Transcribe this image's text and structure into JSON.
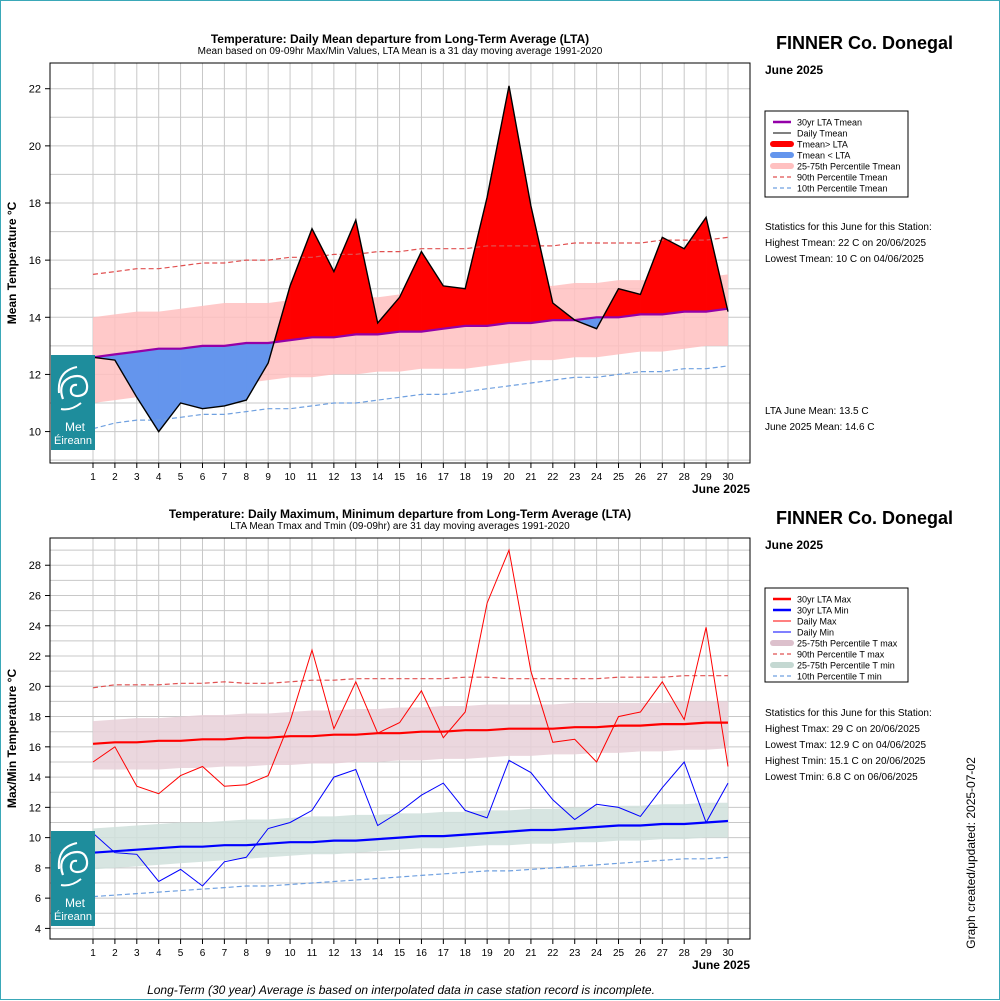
{
  "footer_note": "Long-Term (30 year) Average is based on interpolated data in case station record is incomplete.",
  "side_note": "Graph created/updated:  2025-07-02",
  "logo": {
    "text_line1": "Met",
    "text_line2": "Éireann",
    "color": "#1e8d9c"
  },
  "chart_data": [
    {
      "type": "area",
      "title": "Temperature: Daily Mean departure from Long-Term Average (LTA)",
      "subtitle": "Mean based on 09-09hr Max/Min Values, LTA Mean is a 31 day moving average 1991-2020",
      "station": "FINNER Co. Donegal",
      "month_label": "June 2025",
      "xlabel": "June 2025",
      "ylabel": "Mean Temperature °C",
      "ylim": [
        8.9,
        22.9
      ],
      "yticks": [
        10,
        12,
        14,
        16,
        18,
        20,
        22
      ],
      "x": [
        1,
        2,
        3,
        4,
        5,
        6,
        7,
        8,
        9,
        10,
        11,
        12,
        13,
        14,
        15,
        16,
        17,
        18,
        19,
        20,
        21,
        22,
        23,
        24,
        25,
        26,
        27,
        28,
        29,
        30
      ],
      "grid": true,
      "legend_position": "right",
      "colors": {
        "above": "#ff0000",
        "below": "#6495ed",
        "lta": "#9400a8",
        "band": "#ffc0c0",
        "p90": "#e05050",
        "p10": "#6fa0e0"
      },
      "series": [
        {
          "name": "30yr LTA Tmean",
          "values": [
            12.6,
            12.7,
            12.8,
            12.9,
            12.9,
            13.0,
            13.0,
            13.1,
            13.1,
            13.2,
            13.3,
            13.3,
            13.4,
            13.4,
            13.5,
            13.5,
            13.6,
            13.7,
            13.7,
            13.8,
            13.8,
            13.9,
            13.9,
            14.0,
            14.0,
            14.1,
            14.1,
            14.2,
            14.2,
            14.3
          ]
        },
        {
          "name": "Daily Tmean",
          "values": [
            12.6,
            12.5,
            11.2,
            10.0,
            11.0,
            10.8,
            10.9,
            11.1,
            12.4,
            15.1,
            17.1,
            15.6,
            17.4,
            13.8,
            14.7,
            16.3,
            15.1,
            15.0,
            18.2,
            22.1,
            17.9,
            14.5,
            13.9,
            13.6,
            15.0,
            14.8,
            16.8,
            16.4,
            17.5,
            14.2
          ]
        },
        {
          "name": "25-75th Percentile Tmean",
          "lower": [
            11.0,
            11.1,
            11.2,
            11.3,
            11.4,
            11.5,
            11.6,
            11.7,
            11.8,
            11.9,
            11.9,
            12.0,
            12.0,
            12.1,
            12.1,
            12.2,
            12.2,
            12.2,
            12.3,
            12.4,
            12.5,
            12.5,
            12.6,
            12.6,
            12.7,
            12.8,
            12.8,
            12.9,
            13.0,
            13.0
          ],
          "upper": [
            14.0,
            14.1,
            14.2,
            14.2,
            14.3,
            14.4,
            14.5,
            14.5,
            14.5,
            14.6,
            14.6,
            14.7,
            14.7,
            14.7,
            14.8,
            14.9,
            14.9,
            15.0,
            15.0,
            15.1,
            15.1,
            15.1,
            15.2,
            15.2,
            15.3,
            15.3,
            15.3,
            15.4,
            15.4,
            15.5
          ]
        },
        {
          "name": "90th Percentile Tmean",
          "values": [
            15.5,
            15.6,
            15.7,
            15.7,
            15.8,
            15.9,
            15.9,
            16.0,
            16.0,
            16.1,
            16.1,
            16.2,
            16.2,
            16.3,
            16.3,
            16.4,
            16.4,
            16.4,
            16.5,
            16.5,
            16.5,
            16.5,
            16.6,
            16.6,
            16.6,
            16.6,
            16.7,
            16.7,
            16.7,
            16.8
          ]
        },
        {
          "name": "10th Percentile Tmean",
          "values": [
            10.1,
            10.3,
            10.4,
            10.4,
            10.5,
            10.6,
            10.6,
            10.7,
            10.8,
            10.8,
            10.9,
            11.0,
            11.0,
            11.1,
            11.2,
            11.3,
            11.3,
            11.4,
            11.5,
            11.6,
            11.7,
            11.8,
            11.9,
            11.9,
            12.0,
            12.1,
            12.1,
            12.2,
            12.2,
            12.3
          ]
        }
      ],
      "legend": [
        {
          "label": "30yr LTA Tmean",
          "style": "thick",
          "color": "#9400a8"
        },
        {
          "label": "Daily Tmean",
          "style": "thin",
          "color": "#000000"
        },
        {
          "label": "Tmean> LTA",
          "style": "band",
          "color": "#ff0000"
        },
        {
          "label": "Tmean < LTA",
          "style": "band",
          "color": "#6495ed"
        },
        {
          "label": "25-75th Percentile Tmean",
          "style": "band",
          "color": "#ffc0c0"
        },
        {
          "label": "90th Percentile Tmean",
          "style": "dash",
          "color": "#e05050"
        },
        {
          "label": "10th Percentile Tmean",
          "style": "dash",
          "color": "#6fa0e0"
        }
      ],
      "stats_header": "Statistics for this June for this Station:",
      "stats": [
        "Highest Tmean: 22 C on 20/06/2025",
        "Lowest Tmean: 10 C on 04/06/2025"
      ],
      "summary": [
        "LTA June Mean: 13.5 C",
        "June 2025 Mean: 14.6 C"
      ]
    },
    {
      "type": "line",
      "title": "Temperature: Daily Maximum, Minimum departure from Long-Term Average (LTA)",
      "subtitle": "LTA Mean Tmax and Tmin (09-09hr) are 31 day moving averages 1991-2020",
      "station": "FINNER Co. Donegal",
      "month_label": "June 2025",
      "xlabel": "June 2025",
      "ylabel": "Max/Min Temperature °C",
      "ylim": [
        3.3,
        29.8
      ],
      "yticks": [
        4,
        6,
        8,
        10,
        12,
        14,
        16,
        18,
        20,
        22,
        24,
        26,
        28
      ],
      "x": [
        1,
        2,
        3,
        4,
        5,
        6,
        7,
        8,
        9,
        10,
        11,
        12,
        13,
        14,
        15,
        16,
        17,
        18,
        19,
        20,
        21,
        22,
        23,
        24,
        25,
        26,
        27,
        28,
        29,
        30
      ],
      "grid": true,
      "legend_position": "right",
      "colors": {
        "max": "#ff0000",
        "min": "#0000ff",
        "band_max": "#e8d0d8",
        "band_min": "#d0e0dc",
        "p90": "#e05050",
        "p10": "#6fa0e0"
      },
      "series": [
        {
          "name": "30yr LTA Max",
          "values": [
            16.2,
            16.3,
            16.3,
            16.4,
            16.4,
            16.5,
            16.5,
            16.6,
            16.6,
            16.7,
            16.7,
            16.8,
            16.8,
            16.9,
            16.9,
            17.0,
            17.0,
            17.1,
            17.1,
            17.2,
            17.2,
            17.2,
            17.3,
            17.3,
            17.4,
            17.4,
            17.5,
            17.5,
            17.6,
            17.6
          ]
        },
        {
          "name": "30yr LTA Min",
          "values": [
            9.0,
            9.1,
            9.2,
            9.3,
            9.4,
            9.4,
            9.5,
            9.5,
            9.6,
            9.7,
            9.7,
            9.8,
            9.8,
            9.9,
            10.0,
            10.1,
            10.1,
            10.2,
            10.3,
            10.4,
            10.5,
            10.5,
            10.6,
            10.7,
            10.8,
            10.8,
            10.9,
            10.9,
            11.0,
            11.1
          ]
        },
        {
          "name": "Daily Max",
          "values": [
            15.0,
            16.0,
            13.4,
            12.9,
            14.1,
            14.7,
            13.4,
            13.5,
            14.1,
            17.7,
            22.4,
            17.2,
            20.3,
            16.9,
            17.6,
            19.7,
            16.6,
            18.3,
            25.5,
            29.0,
            21.0,
            16.3,
            16.5,
            15.0,
            18.0,
            18.3,
            20.3,
            17.8,
            23.9,
            14.7
          ]
        },
        {
          "name": "Daily Min",
          "values": [
            10.3,
            9.0,
            8.9,
            7.1,
            7.9,
            6.8,
            8.4,
            8.7,
            10.6,
            11.0,
            11.8,
            14.0,
            14.5,
            10.8,
            11.7,
            12.8,
            13.6,
            11.8,
            11.3,
            15.1,
            14.3,
            12.5,
            11.2,
            12.2,
            12.0,
            11.4,
            13.3,
            15.0,
            11.0,
            13.6
          ]
        },
        {
          "name": "25-75th Percentile T max",
          "lower": [
            14.5,
            14.5,
            14.5,
            14.5,
            14.6,
            14.6,
            14.7,
            14.7,
            14.8,
            14.8,
            14.9,
            14.9,
            15.0,
            15.0,
            15.1,
            15.1,
            15.2,
            15.2,
            15.3,
            15.4,
            15.4,
            15.5,
            15.5,
            15.6,
            15.6,
            15.7,
            15.7,
            15.8,
            15.8,
            15.9
          ],
          "upper": [
            17.7,
            17.8,
            17.9,
            17.9,
            18.0,
            18.1,
            18.1,
            18.2,
            18.2,
            18.3,
            18.4,
            18.4,
            18.5,
            18.5,
            18.6,
            18.6,
            18.7,
            18.7,
            18.8,
            18.8,
            18.8,
            18.8,
            18.9,
            18.9,
            18.9,
            18.9,
            18.9,
            19.0,
            19.0,
            19.0
          ]
        },
        {
          "name": "25-75th Percentile T min",
          "lower": [
            7.9,
            8.0,
            8.1,
            8.2,
            8.3,
            8.4,
            8.5,
            8.6,
            8.7,
            8.8,
            8.9,
            8.9,
            9.0,
            9.1,
            9.2,
            9.3,
            9.3,
            9.4,
            9.5,
            9.5,
            9.6,
            9.6,
            9.7,
            9.7,
            9.8,
            9.8,
            9.9,
            9.9,
            10.0,
            10.0
          ],
          "upper": [
            10.6,
            10.7,
            10.8,
            10.9,
            11.0,
            11.0,
            11.1,
            11.2,
            11.2,
            11.3,
            11.4,
            11.4,
            11.5,
            11.5,
            11.6,
            11.6,
            11.7,
            11.7,
            11.8,
            11.8,
            11.9,
            11.9,
            12.0,
            12.0,
            12.1,
            12.1,
            12.2,
            12.2,
            12.3,
            12.3
          ]
        },
        {
          "name": "90th Percentile T max",
          "values": [
            19.9,
            20.1,
            20.1,
            20.1,
            20.2,
            20.2,
            20.3,
            20.2,
            20.2,
            20.3,
            20.4,
            20.4,
            20.5,
            20.5,
            20.5,
            20.5,
            20.5,
            20.6,
            20.6,
            20.5,
            20.5,
            20.5,
            20.5,
            20.5,
            20.6,
            20.6,
            20.6,
            20.7,
            20.7,
            20.7
          ]
        },
        {
          "name": "10th Percentile T min",
          "values": [
            6.1,
            6.2,
            6.3,
            6.4,
            6.5,
            6.6,
            6.7,
            6.8,
            6.8,
            6.9,
            7.0,
            7.1,
            7.2,
            7.3,
            7.4,
            7.5,
            7.6,
            7.7,
            7.8,
            7.8,
            7.9,
            8.0,
            8.1,
            8.2,
            8.3,
            8.4,
            8.5,
            8.6,
            8.6,
            8.7
          ]
        }
      ],
      "legend": [
        {
          "label": "30yr LTA Max",
          "style": "thick",
          "color": "#ff0000"
        },
        {
          "label": "30yr LTA Min",
          "style": "thick",
          "color": "#0000ff"
        },
        {
          "label": "Daily Max",
          "style": "thin",
          "color": "#ff0000"
        },
        {
          "label": "Daily Min",
          "style": "thin",
          "color": "#0000ff"
        },
        {
          "label": "25-75th Percentile T max",
          "style": "band",
          "color": "#dcc0cc"
        },
        {
          "label": "90th Percentile T max",
          "style": "dash",
          "color": "#e05050"
        },
        {
          "label": "25-75th Percentile T min",
          "style": "band",
          "color": "#c4d8d2"
        },
        {
          "label": "10th Percentile T min",
          "style": "dash",
          "color": "#6fa0e0"
        }
      ],
      "stats_header": "Statistics for this June for this Station:",
      "stats": [
        "Highest Tmax: 29 C on 20/06/2025",
        "Lowest Tmax: 12.9 C on 04/06/2025",
        "Highest Tmin: 15.1 C on 20/06/2025",
        "Lowest Tmin: 6.8 C on 06/06/2025"
      ],
      "summary": []
    }
  ]
}
